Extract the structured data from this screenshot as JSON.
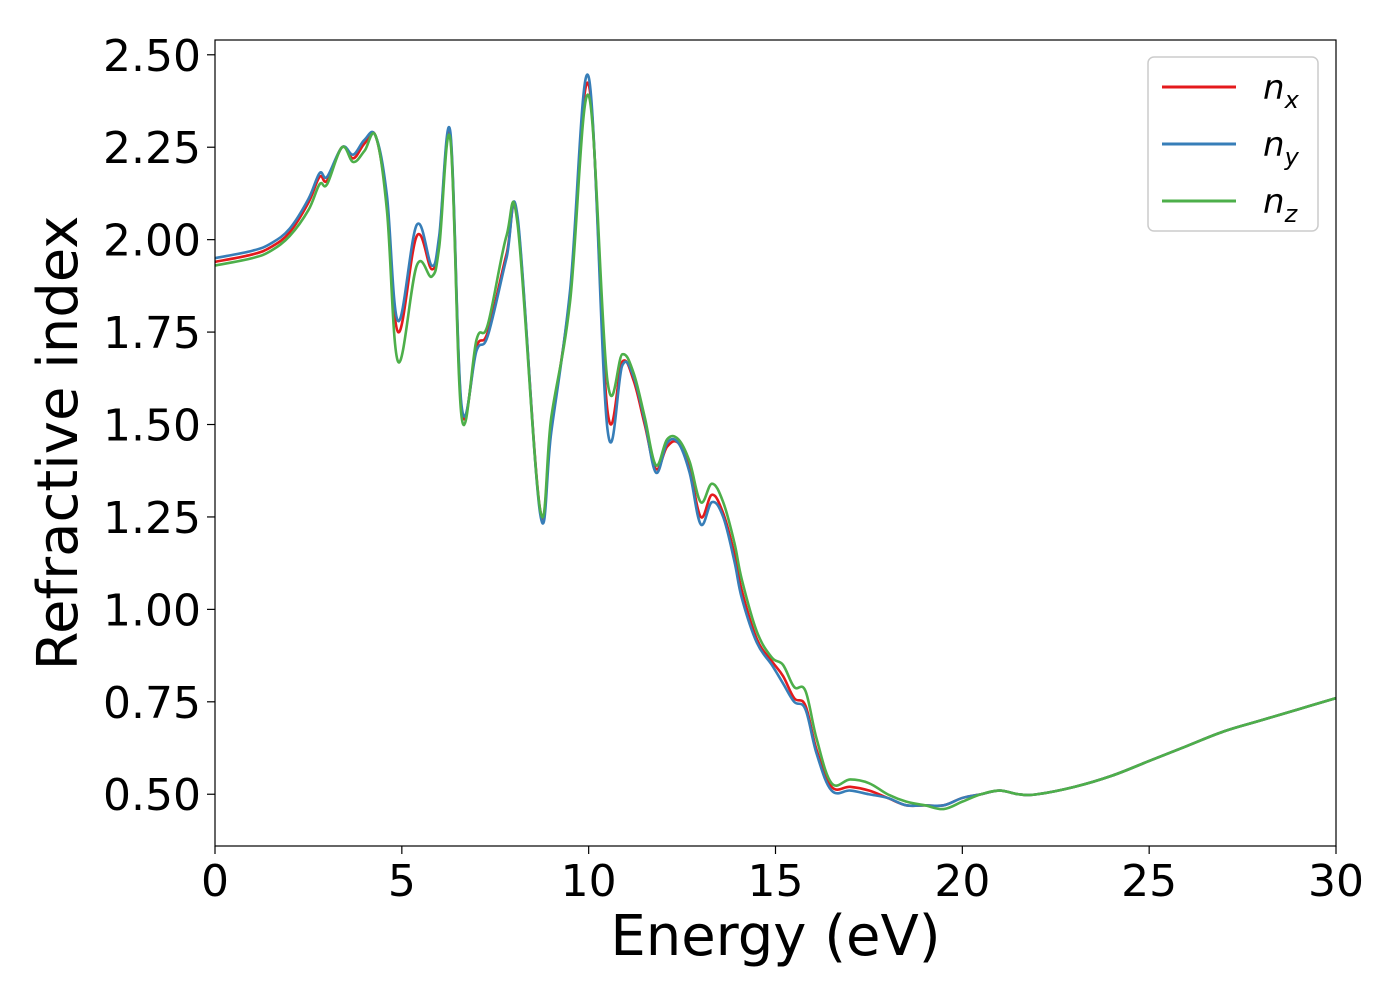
{
  "chart_data": {
    "type": "line",
    "title": "",
    "xlabel": "Energy (eV)",
    "ylabel": "Refractive index",
    "xlim": [
      0,
      30
    ],
    "ylim": [
      0.36,
      2.54
    ],
    "xticks": [
      0,
      5,
      10,
      15,
      20,
      25,
      30
    ],
    "xtick_labels": [
      "0",
      "5",
      "10",
      "15",
      "20",
      "25",
      "30"
    ],
    "yticks": [
      0.5,
      0.75,
      1.0,
      1.25,
      1.5,
      1.75,
      2.0,
      2.25,
      2.5
    ],
    "ytick_labels": [
      "0.50",
      "0.75",
      "1.00",
      "1.25",
      "1.50",
      "1.75",
      "2.00",
      "2.25",
      "2.50"
    ],
    "grid": false,
    "legend_position": "top-right",
    "series": [
      {
        "name": "n_x",
        "legend_base": "n",
        "legend_sub": "x",
        "color": "#e41a1c",
        "x": [
          0,
          1,
          1.5,
          2,
          2.5,
          2.8,
          3.0,
          3.4,
          3.7,
          4.0,
          4.3,
          4.6,
          4.9,
          5.4,
          5.8,
          6.0,
          6.3,
          6.6,
          7.0,
          7.3,
          7.8,
          8.1,
          8.7,
          9.0,
          9.5,
          10.0,
          10.5,
          10.9,
          11.2,
          11.5,
          11.8,
          12.1,
          12.4,
          12.7,
          13.0,
          13.3,
          13.6,
          13.9,
          14.1,
          14.5,
          14.9,
          15.2,
          15.5,
          15.8,
          16.1,
          16.5,
          17.0,
          17.5,
          18.0,
          18.5,
          19.0,
          19.5,
          20.0,
          20.5,
          21.0,
          21.5,
          22.0,
          23.0,
          24.0,
          25.0,
          26.0,
          27.0,
          28.0,
          29.0,
          30.0
        ],
        "y": [
          1.94,
          1.96,
          1.98,
          2.02,
          2.1,
          2.17,
          2.16,
          2.25,
          2.22,
          2.26,
          2.28,
          2.1,
          1.75,
          2.01,
          1.92,
          2.0,
          2.28,
          1.54,
          1.71,
          1.75,
          1.96,
          2.05,
          1.27,
          1.5,
          1.85,
          2.42,
          1.54,
          1.67,
          1.62,
          1.5,
          1.38,
          1.44,
          1.45,
          1.38,
          1.25,
          1.31,
          1.26,
          1.15,
          1.05,
          0.92,
          0.86,
          0.82,
          0.76,
          0.74,
          0.62,
          0.52,
          0.52,
          0.51,
          0.49,
          0.47,
          0.47,
          0.47,
          0.49,
          0.5,
          0.51,
          0.5,
          0.5,
          0.52,
          0.55,
          0.59,
          0.63,
          0.67,
          0.7,
          0.73,
          0.76
        ]
      },
      {
        "name": "n_y",
        "legend_base": "n",
        "legend_sub": "y",
        "color": "#377eb8",
        "x": [
          0,
          1,
          1.5,
          2,
          2.5,
          2.8,
          3.0,
          3.4,
          3.7,
          4.0,
          4.3,
          4.6,
          4.9,
          5.4,
          5.8,
          6.0,
          6.3,
          6.6,
          7.0,
          7.3,
          7.8,
          8.1,
          8.7,
          9.0,
          9.5,
          10.0,
          10.5,
          10.9,
          11.2,
          11.5,
          11.8,
          12.1,
          12.4,
          12.7,
          13.0,
          13.3,
          13.6,
          13.9,
          14.1,
          14.5,
          14.9,
          15.2,
          15.5,
          15.8,
          16.1,
          16.5,
          17.0,
          17.5,
          18.0,
          18.5,
          19.0,
          19.5,
          20.0,
          20.5,
          21.0,
          21.5,
          22.0,
          23.0,
          24.0,
          25.0,
          26.0,
          27.0,
          28.0,
          29.0,
          30.0
        ],
        "y": [
          1.95,
          1.97,
          1.99,
          2.03,
          2.11,
          2.18,
          2.17,
          2.25,
          2.23,
          2.27,
          2.28,
          2.12,
          1.78,
          2.04,
          1.93,
          2.01,
          2.29,
          1.55,
          1.7,
          1.74,
          1.95,
          2.06,
          1.26,
          1.48,
          1.86,
          2.44,
          1.49,
          1.66,
          1.63,
          1.51,
          1.37,
          1.45,
          1.45,
          1.37,
          1.23,
          1.29,
          1.25,
          1.13,
          1.03,
          0.91,
          0.85,
          0.8,
          0.75,
          0.73,
          0.61,
          0.51,
          0.51,
          0.5,
          0.49,
          0.47,
          0.47,
          0.47,
          0.49,
          0.5,
          0.51,
          0.5,
          0.5,
          0.52,
          0.55,
          0.59,
          0.63,
          0.67,
          0.7,
          0.73,
          0.76
        ]
      },
      {
        "name": "n_z",
        "legend_base": "n",
        "legend_sub": "z",
        "color": "#4daf4a",
        "x": [
          0,
          1,
          1.5,
          2,
          2.5,
          2.8,
          3.0,
          3.4,
          3.7,
          4.0,
          4.3,
          4.6,
          4.9,
          5.4,
          5.8,
          6.0,
          6.3,
          6.6,
          7.0,
          7.3,
          7.8,
          8.1,
          8.7,
          9.0,
          9.5,
          10.0,
          10.5,
          10.9,
          11.2,
          11.5,
          11.8,
          12.1,
          12.4,
          12.7,
          13.0,
          13.3,
          13.6,
          13.9,
          14.1,
          14.5,
          14.9,
          15.2,
          15.5,
          15.8,
          16.1,
          16.5,
          17.0,
          17.5,
          18.0,
          18.5,
          19.0,
          19.5,
          20.0,
          20.5,
          21.0,
          21.5,
          22.0,
          23.0,
          24.0,
          25.0,
          26.0,
          27.0,
          28.0,
          29.0,
          30.0
        ],
        "y": [
          1.93,
          1.95,
          1.97,
          2.01,
          2.08,
          2.15,
          2.15,
          2.25,
          2.21,
          2.24,
          2.28,
          2.08,
          1.67,
          1.93,
          1.9,
          1.98,
          2.27,
          1.52,
          1.73,
          1.77,
          2.01,
          2.04,
          1.27,
          1.52,
          1.83,
          2.39,
          1.62,
          1.69,
          1.64,
          1.52,
          1.39,
          1.46,
          1.46,
          1.4,
          1.29,
          1.34,
          1.29,
          1.18,
          1.08,
          0.94,
          0.87,
          0.85,
          0.79,
          0.78,
          0.65,
          0.53,
          0.54,
          0.53,
          0.5,
          0.48,
          0.47,
          0.46,
          0.48,
          0.5,
          0.51,
          0.5,
          0.5,
          0.52,
          0.55,
          0.59,
          0.63,
          0.67,
          0.7,
          0.73,
          0.76
        ]
      }
    ]
  }
}
